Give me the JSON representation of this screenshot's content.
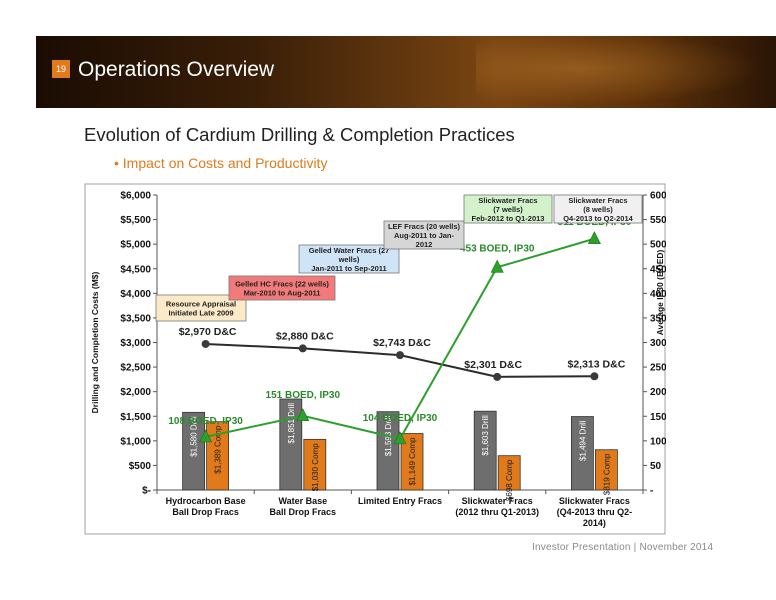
{
  "slide": {
    "page_number": "19",
    "title": "Operations Overview",
    "heading": "Evolution of Cardium Drilling & Completion Practices",
    "bullet": "• Impact on Costs and Productivity",
    "footer": "Investor Presentation  |  November 2014",
    "accent_color": "#e07a1a"
  },
  "chart_data": {
    "type": "bar",
    "title": "",
    "ylabel": "Drilling and Completion Costs (M$)",
    "ylabel_right": "Average IP30 (BOED)",
    "ylim": [
      0,
      6000
    ],
    "ylim_right": [
      0,
      600
    ],
    "y_ticks": [
      "$-",
      "$500",
      "$1,000",
      "$1,500",
      "$2,000",
      "$2,500",
      "$3,000",
      "$3,500",
      "$4,000",
      "$4,500",
      "$5,000",
      "$5,500",
      "$6,000"
    ],
    "y_ticks_right": [
      "-",
      "50",
      "100",
      "150",
      "200",
      "250",
      "300",
      "350",
      "400",
      "450",
      "500",
      "550",
      "600"
    ],
    "categories": [
      [
        "Hydrocarbon Base",
        "Ball Drop Fracs"
      ],
      [
        "Water Base",
        "Ball Drop Fracs"
      ],
      [
        "Limited Entry Fracs"
      ],
      [
        "Slickwater Fracs",
        "(2012 thru Q1-2013)"
      ],
      [
        "Slickwater Fracs",
        "(Q4-2013 thru Q2-",
        "2014)"
      ]
    ],
    "series": [
      {
        "name": "Drill",
        "color": "#6e6e6e",
        "values": [
          1580,
          1851,
          1593,
          1603,
          1494
        ],
        "labels": [
          "$1,580 Drill",
          "$1,851 Drill",
          "$1,593 Drill",
          "$1,603 Drill",
          "$1,494 Drill"
        ]
      },
      {
        "name": "Comp",
        "color": "#e07a1a",
        "values": [
          1389,
          1030,
          1149,
          698,
          819
        ],
        "labels": [
          "$1,389 Comp",
          "$1,030 Comp",
          "$1,149 Comp",
          "$698 Comp",
          "$819 Comp"
        ]
      }
    ],
    "dc_line": {
      "values": [
        2970,
        2880,
        2743,
        2301,
        2313
      ],
      "x_index": [
        0,
        1,
        2,
        3,
        4
      ],
      "labels": [
        "$2,970 D&C",
        "$2,880 D&C",
        "$2,743 D&C",
        "$2,301 D&C",
        "$2,313 D&C"
      ]
    },
    "ip_line": {
      "values": [
        108,
        151,
        104,
        453,
        511
      ],
      "x_index": [
        0,
        1,
        2,
        3,
        4
      ],
      "labels": [
        "108 BOED, IP30",
        "151 BOED, IP30",
        "104 BOED, IP30",
        "453 BOED, IP30",
        "511 BOED, IP30"
      ],
      "color": "#2ca02c"
    },
    "eras": [
      {
        "lines": [
          "Resource Appraisal",
          "Initiated Late 2009"
        ],
        "fill": "#fce9c8"
      },
      {
        "lines": [
          "Gelled HC Fracs (22 wells)",
          "Mar-2010 to Aug-2011"
        ],
        "fill": "#f27a7a"
      },
      {
        "lines": [
          "Gelled Water Fracs (27",
          "wells)",
          "Jan-2011 to Sep-2011"
        ],
        "fill": "#cfe4f7"
      },
      {
        "lines": [
          "LEF Fracs (20 wells)",
          "Aug-2011 to Jan-",
          "2012"
        ],
        "fill": "#d6d6d6"
      },
      {
        "lines": [
          "Slickwater Fracs",
          "(7 wells)",
          "Feb-2012 to Q1-2013"
        ],
        "fill": "#d3f2cc"
      },
      {
        "lines": [
          "Slickwater Fracs",
          "(8 wells)",
          "Q4-2013 to Q2-2014"
        ],
        "fill": "#f0f0f0"
      }
    ]
  }
}
